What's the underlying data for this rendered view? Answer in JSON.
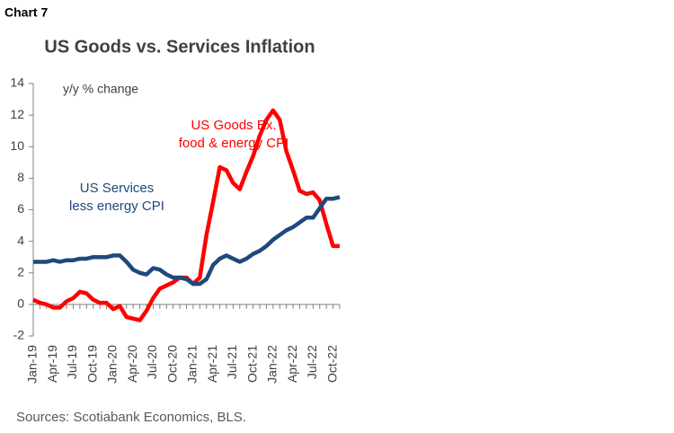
{
  "chart_data": {
    "type": "line",
    "label": "Chart 7",
    "title": "US Goods vs. Services Inflation",
    "y_label": "y/y % change",
    "source": "Sources: Scotiabank Economics, BLS.",
    "categories": [
      "Jan-19",
      null,
      null,
      "Apr-19",
      null,
      null,
      "Jul-19",
      null,
      null,
      "Oct-19",
      null,
      null,
      "Jan-20",
      null,
      null,
      "Apr-20",
      null,
      null,
      "Jul-20",
      null,
      null,
      "Oct-20",
      null,
      null,
      "Jan-21",
      null,
      null,
      "Apr-21",
      null,
      null,
      "Jul-21",
      null,
      null,
      "Oct-21",
      null,
      null,
      "Jan-22",
      null,
      null,
      "Apr-22",
      null,
      null,
      "Jul-22",
      null,
      null,
      "Oct-22",
      null
    ],
    "series": [
      {
        "name": [
          "US Goods Ex.",
          "food & energy CPI"
        ],
        "color": "#ff0000",
        "values": [
          0.3,
          0.1,
          0.0,
          -0.2,
          -0.2,
          0.2,
          0.4,
          0.8,
          0.7,
          0.3,
          0.1,
          0.1,
          -0.3,
          -0.1,
          -0.8,
          -0.9,
          -1.0,
          -0.4,
          0.4,
          1.0,
          1.2,
          1.4,
          1.7,
          1.7,
          1.3,
          1.7,
          4.4,
          6.5,
          8.7,
          8.5,
          7.7,
          7.3,
          8.4,
          9.4,
          10.7,
          11.7,
          12.3,
          11.7,
          9.7,
          8.5,
          7.2,
          7.0,
          7.1,
          6.6,
          5.1,
          3.7,
          3.7
        ]
      },
      {
        "name": [
          "US Services",
          "less energy CPI"
        ],
        "color": "#1f497d",
        "values": [
          2.7,
          2.7,
          2.7,
          2.8,
          2.7,
          2.8,
          2.8,
          2.9,
          2.9,
          3.0,
          3.0,
          3.0,
          3.1,
          3.1,
          2.7,
          2.2,
          2.0,
          1.9,
          2.3,
          2.2,
          1.9,
          1.7,
          1.7,
          1.6,
          1.3,
          1.3,
          1.6,
          2.5,
          2.9,
          3.1,
          2.9,
          2.7,
          2.9,
          3.2,
          3.4,
          3.7,
          4.1,
          4.4,
          4.7,
          4.9,
          5.2,
          5.5,
          5.5,
          6.1,
          6.7,
          6.7,
          6.8
        ]
      }
    ],
    "ylim": [
      -2,
      14
    ],
    "yticks": [
      -2,
      0,
      2,
      4,
      6,
      8,
      10,
      12,
      14
    ],
    "grid": false
  }
}
